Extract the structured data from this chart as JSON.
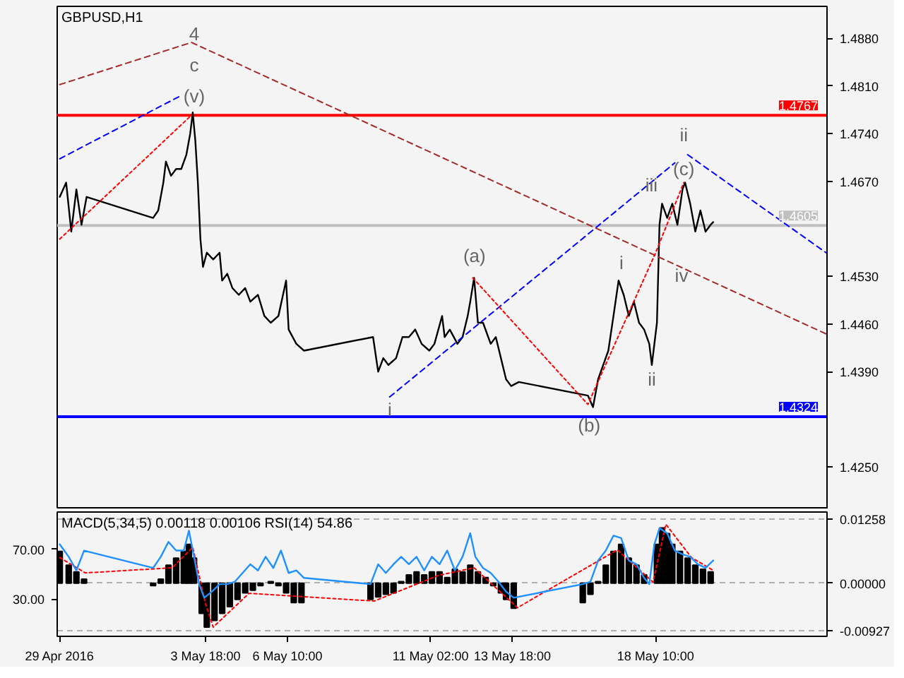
{
  "chart_data": [
    {
      "type": "line",
      "title": "GBPUSD,H1",
      "xlim": [
        "2016-04-28T22:00",
        "2016-05-24T00:00"
      ],
      "ylim": [
        1.4188,
        1.4927
      ],
      "yticks": [
        {
          "value": 1.488,
          "label": "1.4880"
        },
        {
          "value": 1.481,
          "label": "1.4810"
        },
        {
          "value": 1.474,
          "label": "1.4740"
        },
        {
          "value": 1.467,
          "label": "1.4670"
        },
        {
          "value": 1.453,
          "label": "1.4530"
        },
        {
          "value": 1.446,
          "label": "1.4460"
        },
        {
          "value": 1.439,
          "label": "1.4390"
        },
        {
          "value": 1.425,
          "label": "1.4250"
        }
      ],
      "tick_labels": "y",
      "grid": false,
      "series": [
        {
          "color": "#000000",
          "line_style": "solid",
          "x": [
            "2016-04-29T00:00",
            "2016-04-29T05:00",
            "2016-04-29T09:00",
            "2016-04-29T13:00",
            "2016-04-29T17:00",
            "2016-04-29T21:00",
            "2016-05-02T01:00",
            "2016-05-02T05:00",
            "2016-05-02T09:00",
            "2016-05-02T11:00",
            "2016-05-02T15:00",
            "2016-05-02T19:00",
            "2016-05-02T23:00",
            "2016-05-03T03:00",
            "2016-05-03T06:00",
            "2016-05-03T08:00",
            "2016-05-03T10:00",
            "2016-05-03T12:00",
            "2016-05-03T14:00",
            "2016-05-03T16:00",
            "2016-05-03T19:00",
            "2016-05-04T00:00",
            "2016-05-04T05:00",
            "2016-05-04T07:00",
            "2016-05-04T11:00",
            "2016-05-04T15:00",
            "2016-05-04T20:00",
            "2016-05-05T01:00",
            "2016-05-05T05:00",
            "2016-05-05T11:00",
            "2016-05-05T16:00",
            "2016-05-05T21:00",
            "2016-05-06T03:00",
            "2016-05-06T09:00",
            "2016-05-06T11:00",
            "2016-05-06T17:00",
            "2016-05-06T23:00",
            "2016-05-09T05:00",
            "2016-05-09T09:00",
            "2016-05-09T13:00",
            "2016-05-09T17:00",
            "2016-05-09T23:00",
            "2016-05-10T04:00",
            "2016-05-10T09:00",
            "2016-05-10T14:00",
            "2016-05-10T19:00",
            "2016-05-11T01:00",
            "2016-05-11T05:00",
            "2016-05-11T11:00",
            "2016-05-11T13:00",
            "2016-05-11T17:00",
            "2016-05-11T23:00",
            "2016-05-12T03:00",
            "2016-05-12T07:00",
            "2016-05-12T09:00",
            "2016-05-12T12:00",
            "2016-05-12T15:00",
            "2016-05-12T19:00",
            "2016-05-13T01:00",
            "2016-05-13T05:00",
            "2016-05-13T09:00",
            "2016-05-13T13:00",
            "2016-05-13T17:00",
            "2016-05-13T23:00",
            "2016-05-16T05:00",
            "2016-05-16T09:00",
            "2016-05-16T13:00",
            "2016-05-16T17:00",
            "2016-05-16T21:00",
            "2016-05-17T01:00",
            "2016-05-17T05:00",
            "2016-05-17T09:00",
            "2016-05-17T13:00",
            "2016-05-17T17:00",
            "2016-05-17T21:00",
            "2016-05-18T01:00",
            "2016-05-18T05:00",
            "2016-05-18T07:00",
            "2016-05-18T11:00",
            "2016-05-18T13:00",
            "2016-05-18T15:00",
            "2016-05-18T19:00",
            "2016-05-18T23:00",
            "2016-05-19T03:00",
            "2016-05-19T07:00",
            "2016-05-19T09:00",
            "2016-05-19T13:00",
            "2016-05-19T17:00",
            "2016-05-19T21:00",
            "2016-05-20T01:00",
            "2016-05-20T05:00",
            "2016-05-20T07:00"
          ],
          "values": [
            1.4647,
            1.4668,
            1.4596,
            1.4658,
            1.4606,
            1.4647,
            1.4616,
            1.4627,
            1.4668,
            1.4699,
            1.4678,
            1.4688,
            1.4688,
            1.4709,
            1.474,
            1.4771,
            1.473,
            1.4668,
            1.4585,
            1.4544,
            1.4565,
            1.4555,
            1.4565,
            1.4524,
            1.4534,
            1.4513,
            1.4503,
            1.4513,
            1.4493,
            1.4503,
            1.4472,
            1.4462,
            1.4472,
            1.4524,
            1.4452,
            1.4431,
            1.4421,
            1.4441,
            1.439,
            1.441,
            1.44,
            1.441,
            1.4441,
            1.4441,
            1.4452,
            1.4431,
            1.4421,
            1.4431,
            1.4472,
            1.4441,
            1.4452,
            1.4431,
            1.4441,
            1.4472,
            1.4493,
            1.4528,
            1.4462,
            1.4462,
            1.4431,
            1.4441,
            1.441,
            1.4379,
            1.4369,
            1.4375,
            1.4355,
            1.4338,
            1.4379,
            1.44,
            1.4421,
            1.4472,
            1.4524,
            1.4503,
            1.4472,
            1.4493,
            1.4462,
            1.4452,
            1.4431,
            1.44,
            1.4462,
            1.4606,
            1.4637,
            1.4616,
            1.4637,
            1.4606,
            1.4658,
            1.4668,
            1.4637,
            1.4596,
            1.4627,
            1.4596,
            1.4606,
            1.461
          ]
        },
        {
          "type": "line",
          "color": "#0000ff",
          "line_style": "dashed",
          "x": [
            "2016-04-29T00:00",
            "2016-05-02T23:00"
          ],
          "values": [
            1.4703,
            1.4796
          ]
        },
        {
          "type": "line",
          "color": "#0000ff",
          "line_style": "dashed",
          "x": [
            "2016-05-09T18:00",
            "2016-05-19T01:00"
          ],
          "values": [
            1.4353,
            1.4697
          ]
        },
        {
          "type": "line",
          "color": "#0000ff",
          "line_style": "dashed",
          "x": [
            "2016-05-19T11:00",
            "2016-05-24T00:00"
          ],
          "values": [
            1.4709,
            1.4564
          ]
        },
        {
          "type": "line",
          "color": "#a52a2a",
          "line_style": "dashed",
          "x": [
            "2016-04-29T00:00",
            "2016-05-03T07:00",
            "2016-05-24T00:00"
          ],
          "values": [
            1.4812,
            1.4874,
            1.4445
          ]
        },
        {
          "type": "line",
          "color": "#ff0000",
          "line_style": "dotted",
          "x": [
            "2016-04-29T00:00",
            "2016-05-03T07:00"
          ],
          "values": [
            1.4585,
            1.4767
          ]
        },
        {
          "type": "line",
          "color": "#ff0000",
          "line_style": "dotted",
          "x": [
            "2016-05-12T11:00",
            "2016-05-16T05:00",
            "2016-05-18T10:00",
            "2016-05-19T08:00"
          ],
          "values": [
            1.4528,
            1.4342,
            1.4565,
            1.4668
          ]
        }
      ],
      "ref_lines": [
        {
          "axis": "y",
          "value": 1.4767,
          "label": "1.4767",
          "color": "#ff0000"
        },
        {
          "axis": "y",
          "value": 1.4324,
          "label": "1.4324",
          "color": "#0000ff"
        },
        {
          "axis": "y",
          "value": 1.4605,
          "label": "1.4605",
          "color": "#c0c0c0"
        }
      ],
      "annotations": [
        "4",
        "c",
        "(v)",
        "ii",
        "(c)",
        "iii",
        "i",
        {
          "text": "ii",
          "x": "2016-05-18T07:00",
          "y": 1.44
        },
        "iv",
        "(a)",
        "(b)",
        {
          "text": "i",
          "x": "2016-05-09T18:00",
          "y": 1.4355
        }
      ]
    },
    {
      "type": "bar",
      "title": "MACD(5,34,5) 0.00118 0.00106 RSI(14) 54.86",
      "xlim": [
        "2016-04-28T22:00",
        "2016-05-24T00:00"
      ],
      "ylim": [
        -0.0104,
        0.0139
      ],
      "yticks": [
        {
          "value": 0.01258,
          "label": "0.01258"
        },
        {
          "value": 0,
          "label": "0.00000"
        },
        {
          "value": -0.00927,
          "label": "-0.00927"
        }
      ],
      "y2lim": [
        0,
        100
      ],
      "y2ticks": [
        {
          "value": 70,
          "label": "70.00"
        },
        {
          "value": 30,
          "label": "30.00"
        }
      ],
      "xticks": [
        {
          "value": "2016-04-29T00:00",
          "label": "29 Apr 2016"
        },
        {
          "value": "2016-05-03T18:00",
          "label": "3 May 18:00"
        },
        {
          "value": "2016-05-06T10:00",
          "label": "6 May 10:00"
        },
        {
          "value": "2016-05-11T02:00",
          "label": "11 May 02:00"
        },
        {
          "value": "2016-05-13T18:00",
          "label": "13 May 18:00"
        },
        {
          "value": "2016-05-18T10:00",
          "label": "18 May 10:00"
        }
      ],
      "grid": "y",
      "series": [
        {
          "color": "#000000",
          "x": [
            "2016-04-29T00:00",
            "2016-04-29T07:00",
            "2016-04-29T13:00",
            "2016-04-29T19:00",
            "2016-05-02T01:00",
            "2016-05-02T07:00",
            "2016-05-02T13:00",
            "2016-05-02T19:00",
            "2016-05-03T01:00",
            "2016-05-03T05:00",
            "2016-05-03T09:00",
            "2016-05-03T12:00",
            "2016-05-03T15:00",
            "2016-05-03T19:00",
            "2016-05-04T01:00",
            "2016-05-04T07:00",
            "2016-05-04T13:00",
            "2016-05-04T19:00",
            "2016-05-05T01:00",
            "2016-05-05T07:00",
            "2016-05-05T13:00",
            "2016-05-05T21:00",
            "2016-05-06T03:00",
            "2016-05-06T09:00",
            "2016-05-06T15:00",
            "2016-05-06T21:00",
            "2016-05-09T03:00",
            "2016-05-09T09:00",
            "2016-05-09T15:00",
            "2016-05-09T21:00",
            "2016-05-10T03:00",
            "2016-05-10T09:00",
            "2016-05-10T15:00",
            "2016-05-10T21:00",
            "2016-05-11T03:00",
            "2016-05-11T09:00",
            "2016-05-11T15:00",
            "2016-05-11T21:00",
            "2016-05-12T03:00",
            "2016-05-12T09:00",
            "2016-05-12T15:00",
            "2016-05-12T21:00",
            "2016-05-13T03:00",
            "2016-05-13T09:00",
            "2016-05-13T13:00",
            "2016-05-13T19:00",
            "2016-05-16T01:00",
            "2016-05-16T07:00",
            "2016-05-16T13:00",
            "2016-05-16T19:00",
            "2016-05-17T01:00",
            "2016-05-17T07:00",
            "2016-05-17T13:00",
            "2016-05-17T19:00",
            "2016-05-18T01:00",
            "2016-05-18T05:00",
            "2016-05-18T11:00",
            "2016-05-18T15:00",
            "2016-05-18T19:00",
            "2016-05-18T23:00",
            "2016-05-19T05:00",
            "2016-05-19T11:00",
            "2016-05-19T17:00",
            "2016-05-19T23:00",
            "2016-05-20T05:00"
          ],
          "values": [
            0.0062,
            0.0035,
            0.0022,
            0.0008,
            -0.0005,
            0.0008,
            0.0035,
            0.0049,
            0.0062,
            0.0076,
            0.0049,
            null,
            -0.0059,
            -0.0086,
            -0.0073,
            -0.0059,
            -0.0046,
            -0.0032,
            -0.0019,
            -0.0014,
            -0.0005,
            0.0003,
            -0.0005,
            -0.0019,
            -0.0038,
            -0.0038,
            -0.0032,
            -0.0027,
            -0.0022,
            -0.0019,
            0.0003,
            0.0016,
            0.0022,
            0.0016,
            0.0022,
            0.0022,
            0.0011,
            0.0027,
            0.0022,
            0.0035,
            0.0022,
            0.0011,
            -0.0005,
            -0.0019,
            -0.0032,
            -0.0049,
            -0.0038,
            -0.0022,
            0.0003,
            0.0035,
            0.0062,
            0.0076,
            0.0049,
            0.0035,
            0.0016,
            null,
            0.0076,
            0.0108,
            0.0097,
            0.0076,
            0.0062,
            0.0049,
            0.0035,
            0.0027,
            0.0022
          ]
        },
        {
          "type": "line",
          "color": "#ff0000",
          "line_style": "dotted",
          "x": [
            "2016-04-29T00:00",
            "2016-04-29T20:00",
            "2016-05-02T16:00",
            "2016-05-03T08:00",
            "2016-05-03T18:00",
            "2016-05-04T00:00",
            "2016-05-05T04:00",
            "2016-05-09T06:00",
            "2016-05-11T08:00",
            "2016-05-12T12:00",
            "2016-05-13T22:00",
            "2016-05-17T04:00",
            "2016-05-18T08:00",
            "2016-05-18T18:00",
            "2016-05-19T14:00",
            "2016-05-20T07:00"
          ],
          "values": [
            0.005,
            0.002,
            0.003,
            0.007,
            -0.004,
            -0.0086,
            -0.002,
            -0.0035,
            0.0015,
            0.003,
            -0.0048,
            0.0065,
            0.0002,
            0.0115,
            0.005,
            0.0025
          ]
        },
        {
          "type": "line",
          "axis": "y2",
          "color": "#1e90ff",
          "line_style": "solid",
          "x": [
            "2016-04-29T00:00",
            "2016-04-29T07:00",
            "2016-04-29T13:00",
            "2016-04-29T19:00",
            "2016-05-02T01:00",
            "2016-05-02T07:00",
            "2016-05-02T13:00",
            "2016-05-02T19:00",
            "2016-05-03T01:00",
            "2016-05-03T05:00",
            "2016-05-03T09:00",
            "2016-05-03T13:00",
            "2016-05-03T17:00",
            "2016-05-03T23:00",
            "2016-05-04T05:00",
            "2016-05-04T11:00",
            "2016-05-04T17:00",
            "2016-05-04T23:00",
            "2016-05-05T05:00",
            "2016-05-05T11:00",
            "2016-05-05T17:00",
            "2016-05-05T23:00",
            "2016-05-06T05:00",
            "2016-05-06T11:00",
            "2016-05-06T17:00",
            "2016-05-06T23:00",
            "2016-05-09T03:00",
            "2016-05-09T09:00",
            "2016-05-09T15:00",
            "2016-05-09T21:00",
            "2016-05-10T03:00",
            "2016-05-10T09:00",
            "2016-05-10T15:00",
            "2016-05-10T21:00",
            "2016-05-11T03:00",
            "2016-05-11T09:00",
            "2016-05-11T15:00",
            "2016-05-11T21:00",
            "2016-05-12T03:00",
            "2016-05-12T09:00",
            "2016-05-12T13:00",
            "2016-05-12T19:00",
            "2016-05-13T01:00",
            "2016-05-13T07:00",
            "2016-05-13T13:00",
            "2016-05-13T19:00",
            "2016-05-16T01:00",
            "2016-05-16T07:00",
            "2016-05-16T13:00",
            "2016-05-16T19:00",
            "2016-05-17T01:00",
            "2016-05-17T07:00",
            "2016-05-17T13:00",
            "2016-05-17T19:00",
            "2016-05-18T01:00",
            "2016-05-18T05:00",
            "2016-05-18T09:00",
            "2016-05-18T13:00",
            "2016-05-18T19:00",
            "2016-05-19T01:00",
            "2016-05-19T07:00",
            "2016-05-19T13:00",
            "2016-05-19T19:00",
            "2016-05-20T01:00",
            "2016-05-20T07:00"
          ],
          "values": [
            74,
            64,
            53,
            69,
            55,
            64,
            76,
            69,
            69,
            85,
            64,
            42,
            31,
            36,
            42,
            42,
            44,
            51,
            58,
            53,
            64,
            55,
            69,
            51,
            53,
            47,
            42,
            58,
            51,
            58,
            64,
            58,
            64,
            53,
            64,
            58,
            69,
            53,
            64,
            83,
            64,
            55,
            51,
            44,
            36,
            31,
            42,
            44,
            61,
            69,
            81,
            79,
            61,
            58,
            47,
            42,
            74,
            87,
            83,
            69,
            66,
            64,
            58,
            55,
            61
          ]
        }
      ]
    }
  ]
}
